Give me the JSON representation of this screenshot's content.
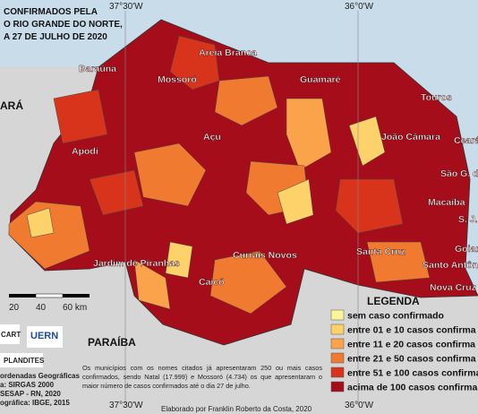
{
  "title": [
    "CONFIRMADOS PELA",
    "O RIO GRANDE DO NORTE,",
    "A 27 DE JULHO DE 2020"
  ],
  "coordinates": [
    "37°30'W",
    "36°0'W"
  ],
  "neighbors": [
    "ARÁ",
    "PARAÍBA"
  ],
  "cities": [
    "Baraúna",
    "Areia Branca",
    "Mossoró",
    "Guamaré",
    "Touros",
    "Açu",
    "João Câmara",
    "Ceará-",
    "Apodi",
    "São G. do",
    "Macaíba",
    "S. J.",
    "Goian",
    "Santa Cruz",
    "Currais Novos",
    "Santo Antônio",
    "Jardim de Piranhas",
    "Caicó",
    "Nova Cruz"
  ],
  "scale": [
    "20",
    "40",
    "60 km"
  ],
  "logos": [
    "CART",
    "UERN",
    "PLANDITES"
  ],
  "credits": [
    "ordenadas Geográficas",
    "a: SIRGAS 2000",
    "SESAP - RN, 2020",
    "ográfica: IBGE, 2015"
  ],
  "note": "Os municípios com os nomes citados já apresentaram 250 ou mais casos confirmados, sendo Natal (17.999) e Mossoró (4.734) os que apresentaram o maior número de casos confirmados até o dia 27 de julho.",
  "footer": "Elaborado por Franklin Roberto da Costa, 2020",
  "legend": {
    "title": "LEGENDA",
    "items": [
      {
        "label": "sem caso confirmado",
        "color": "#fdf59a"
      },
      {
        "label": "entre 01 e 10 casos confirma",
        "color": "#fdd26b"
      },
      {
        "label": "entre 11 e 20 casos confirma",
        "color": "#fba34a"
      },
      {
        "label": "entre 21 e 50 casos confirma",
        "color": "#f07a30"
      },
      {
        "label": "entre 51 e 100 casos confirma",
        "color": "#d8341c"
      },
      {
        "label": "acima de 100 casos confirma",
        "color": "#a50d1a"
      }
    ]
  }
}
